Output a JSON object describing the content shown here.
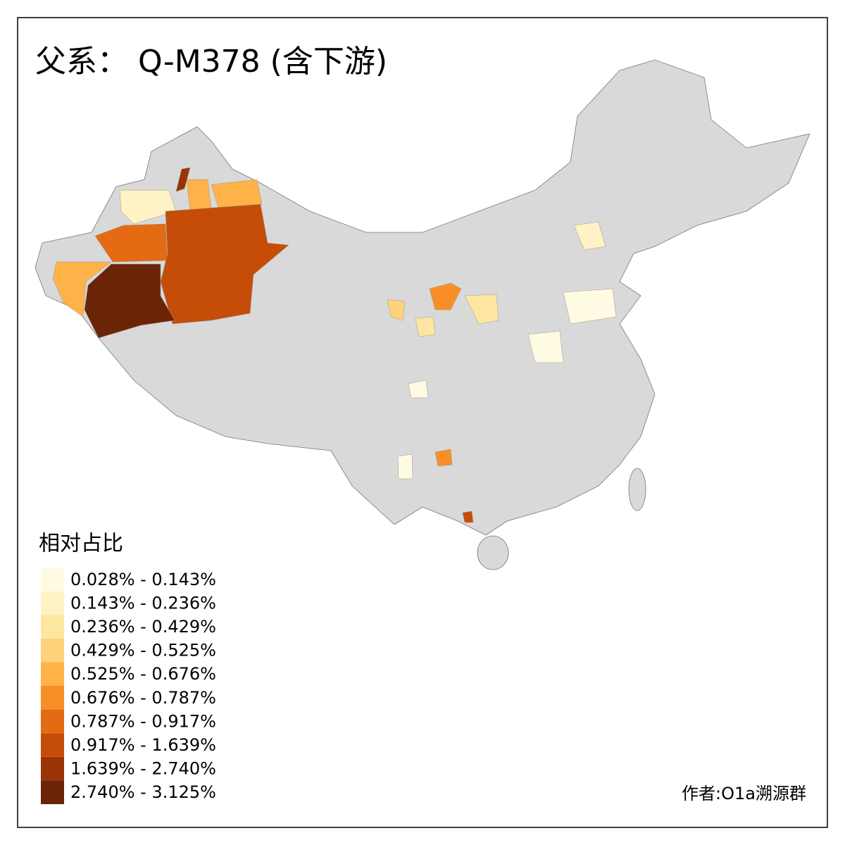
{
  "title": "父系： Q-M378 (含下游)",
  "legend": {
    "title": "相对占比",
    "items": [
      {
        "label": "0.028% - 0.143%",
        "color": "#fffbe2"
      },
      {
        "label": "0.143% - 0.236%",
        "color": "#fff2c4"
      },
      {
        "label": "0.236% - 0.429%",
        "color": "#fee6a0"
      },
      {
        "label": "0.429% - 0.525%",
        "color": "#fed27a"
      },
      {
        "label": "0.525% - 0.676%",
        "color": "#feb247"
      },
      {
        "label": "0.676% - 0.787%",
        "color": "#f88f26"
      },
      {
        "label": "0.787% - 0.917%",
        "color": "#e56a14"
      },
      {
        "label": "0.917% - 1.639%",
        "color": "#c64d08"
      },
      {
        "label": "1.639% - 2.740%",
        "color": "#9a3406"
      },
      {
        "label": "2.740% - 3.125%",
        "color": "#6b2406"
      }
    ]
  },
  "credit": "作者:O1a溯源群"
}
